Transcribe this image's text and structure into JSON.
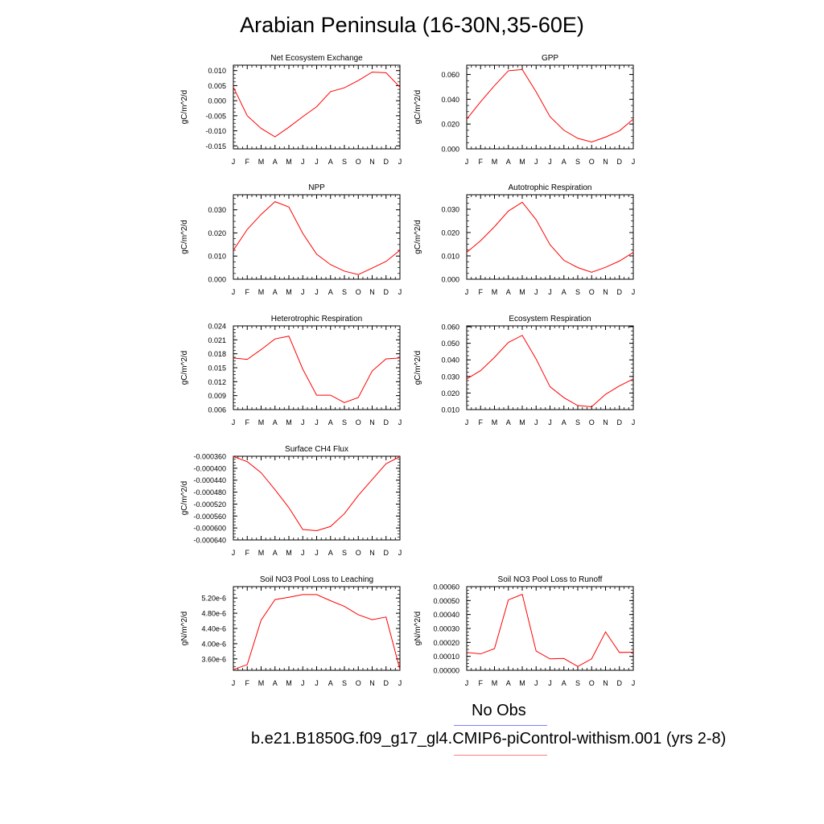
{
  "page": {
    "title": "Arabian Peninsula (16-30N,35-60E)"
  },
  "legend": {
    "items": [
      {
        "label": "No Obs",
        "color": "#7f7fff"
      },
      {
        "label": "b.e21.B1850G.f09_g17_gl4.CMIP6-piControl-withism.001 (yrs 2-8)",
        "color": "#ff7f7f"
      }
    ]
  },
  "series_color": "#ff0000",
  "chart_data": [
    {
      "type": "line",
      "title": "Net Ecosystem Exchange",
      "xlabel": "",
      "ylabel": "gC/m^2/d",
      "categories": [
        "J",
        "F",
        "M",
        "A",
        "M",
        "J",
        "J",
        "A",
        "S",
        "O",
        "N",
        "D",
        "J"
      ],
      "values": [
        0.0045,
        -0.005,
        -0.0092,
        -0.012,
        -0.0088,
        -0.0053,
        -0.002,
        0.003,
        0.0043,
        0.0067,
        0.0095,
        0.0093,
        0.0045
      ],
      "ylim": [
        -0.016,
        0.0118
      ],
      "yticks": [
        0.01,
        0.005,
        0.0,
        -0.005,
        -0.01,
        -0.015
      ],
      "ytick_labels": [
        "0.010",
        "0.005",
        "0.000",
        "-0.005",
        "-0.010",
        "-0.015"
      ]
    },
    {
      "type": "line",
      "title": "GPP",
      "xlabel": "",
      "ylabel": "gC/m^2/d",
      "categories": [
        "J",
        "F",
        "M",
        "A",
        "M",
        "J",
        "J",
        "A",
        "S",
        "O",
        "N",
        "D",
        "J"
      ],
      "values": [
        0.024,
        0.038,
        0.051,
        0.063,
        0.064,
        0.046,
        0.026,
        0.015,
        0.0085,
        0.0055,
        0.0095,
        0.0145,
        0.024
      ],
      "ylim": [
        0,
        0.0675
      ],
      "yticks": [
        0.0,
        0.02,
        0.04,
        0.06
      ],
      "ytick_labels": [
        "0.000",
        "0.020",
        "0.040",
        "0.060"
      ]
    },
    {
      "type": "line",
      "title": "NPP",
      "xlabel": "",
      "ylabel": "gC/m^2/d",
      "categories": [
        "J",
        "F",
        "M",
        "A",
        "M",
        "J",
        "J",
        "A",
        "S",
        "O",
        "N",
        "D",
        "J"
      ],
      "values": [
        0.0125,
        0.0215,
        0.028,
        0.0335,
        0.0312,
        0.0198,
        0.0108,
        0.0063,
        0.0035,
        0.002,
        0.0048,
        0.0077,
        0.0125
      ],
      "ylim": [
        0,
        0.0365
      ],
      "yticks": [
        0.0,
        0.01,
        0.02,
        0.03
      ],
      "ytick_labels": [
        "0.000",
        "0.010",
        "0.020",
        "0.030"
      ]
    },
    {
      "type": "line",
      "title": "Autotrophic Respiration",
      "xlabel": "",
      "ylabel": "gC/m^2/d",
      "categories": [
        "J",
        "F",
        "M",
        "A",
        "M",
        "J",
        "J",
        "A",
        "S",
        "O",
        "N",
        "D",
        "J"
      ],
      "values": [
        0.0115,
        0.0165,
        0.0225,
        0.0292,
        0.033,
        0.0255,
        0.0148,
        0.0081,
        0.005,
        0.003,
        0.0051,
        0.0078,
        0.0115
      ],
      "ylim": [
        0,
        0.0362
      ],
      "yticks": [
        0.0,
        0.01,
        0.02,
        0.03
      ],
      "ytick_labels": [
        "0.000",
        "0.010",
        "0.020",
        "0.030"
      ]
    },
    {
      "type": "line",
      "title": "Heterotrophic Respiration",
      "xlabel": "",
      "ylabel": "gC/m^2/d",
      "categories": [
        "J",
        "F",
        "M",
        "A",
        "M",
        "J",
        "J",
        "A",
        "S",
        "O",
        "N",
        "D",
        "J"
      ],
      "values": [
        0.0171,
        0.0168,
        0.0189,
        0.0212,
        0.0218,
        0.0147,
        0.0091,
        0.0091,
        0.0075,
        0.0086,
        0.0143,
        0.0169,
        0.0171
      ],
      "ylim": [
        0.006,
        0.024
      ],
      "yticks": [
        0.024,
        0.021,
        0.018,
        0.015,
        0.012,
        0.009,
        0.006
      ],
      "ytick_labels": [
        "0.024",
        "0.021",
        "0.018",
        "0.015",
        "0.012",
        "0.009",
        "0.006"
      ]
    },
    {
      "type": "line",
      "title": "Ecosystem Respiration",
      "xlabel": "",
      "ylabel": "gC/m^2/d",
      "categories": [
        "J",
        "F",
        "M",
        "A",
        "M",
        "J",
        "J",
        "A",
        "S",
        "O",
        "N",
        "D",
        "J"
      ],
      "values": [
        0.0285,
        0.0335,
        0.0415,
        0.0505,
        0.0548,
        0.0405,
        0.0238,
        0.0172,
        0.0124,
        0.0117,
        0.0192,
        0.0243,
        0.0285
      ],
      "ylim": [
        0.01,
        0.0605
      ],
      "yticks": [
        0.01,
        0.02,
        0.03,
        0.04,
        0.05,
        0.06
      ],
      "ytick_labels": [
        "0.010",
        "0.020",
        "0.030",
        "0.040",
        "0.050",
        "0.060"
      ]
    },
    {
      "type": "line",
      "title": "Surface CH4 Flux",
      "xlabel": "",
      "ylabel": "gC/m^2/d",
      "categories": [
        "J",
        "F",
        "M",
        "A",
        "M",
        "J",
        "J",
        "A",
        "S",
        "O",
        "N",
        "D",
        "J"
      ],
      "values": [
        -0.000361,
        -0.000378,
        -0.000415,
        -0.000472,
        -0.000532,
        -0.000605,
        -0.000609,
        -0.000595,
        -0.000552,
        -0.000491,
        -0.000438,
        -0.000385,
        -0.000361
      ],
      "ylim": [
        -0.00064,
        -0.00036
      ],
      "yticks": [
        -0.00036,
        -0.0004,
        -0.00044,
        -0.00048,
        -0.00052,
        -0.00056,
        -0.0006,
        -0.00064
      ],
      "ytick_labels": [
        "-0.000360",
        "-0.000400",
        "-0.000440",
        "-0.000480",
        "-0.000520",
        "-0.000560",
        "-0.000600",
        "-0.000640"
      ]
    },
    {
      "type": "line",
      "title": "Soil NO3 Pool Loss to Leaching",
      "xlabel": "",
      "ylabel": "gN/m^2/d",
      "categories": [
        "J",
        "F",
        "M",
        "A",
        "M",
        "J",
        "J",
        "A",
        "S",
        "O",
        "N",
        "D",
        "J"
      ],
      "values": [
        3.32e-06,
        3.45e-06,
        4.62e-06,
        5.16e-06,
        5.22e-06,
        5.29e-06,
        5.29e-06,
        5.13e-06,
        4.98e-06,
        4.76e-06,
        4.63e-06,
        4.7e-06,
        3.32e-06
      ],
      "ylim": [
        3.3e-06,
        5.5e-06
      ],
      "yticks": [
        5.2e-06,
        4.8e-06,
        4.4e-06,
        4e-06,
        3.6e-06
      ],
      "ytick_labels": [
        "5.20e-6",
        "4.80e-6",
        "4.40e-6",
        "4.00e-6",
        "3.60e-6"
      ]
    },
    {
      "type": "line",
      "title": "Soil NO3 Pool Loss to Runoff",
      "xlabel": "",
      "ylabel": "gN/m^2/d",
      "categories": [
        "J",
        "F",
        "M",
        "A",
        "M",
        "J",
        "J",
        "A",
        "S",
        "O",
        "N",
        "D",
        "J"
      ],
      "values": [
        0.000128,
        0.000118,
        0.000155,
        0.000505,
        0.000545,
        0.000138,
        8.2e-05,
        8.5e-05,
        2.8e-05,
        8.2e-05,
        0.000275,
        0.000128,
        0.00013
      ],
      "ylim": [
        0,
        0.0006
      ],
      "yticks": [
        0.0,
        0.0001,
        0.0002,
        0.0003,
        0.0004,
        0.0005,
        0.0006
      ],
      "ytick_labels": [
        "0.00000",
        "0.00010",
        "0.00020",
        "0.00030",
        "0.00040",
        "0.00050",
        "0.00060"
      ]
    }
  ]
}
